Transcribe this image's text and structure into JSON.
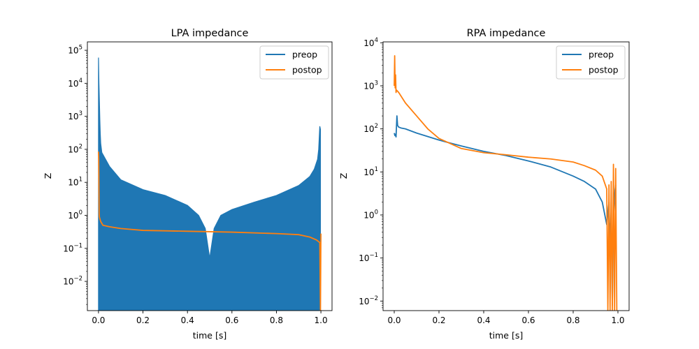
{
  "chart_data": [
    {
      "type": "line",
      "title": "LPA impedance",
      "xlabel": "time [s]",
      "ylabel": "Z",
      "yscale": "log",
      "xlim": [
        -0.05,
        1.05
      ],
      "ylim": [
        0.0013,
        180000
      ],
      "xticks": [
        0.0,
        0.2,
        0.4,
        0.6,
        0.8,
        1.0
      ],
      "xtick_labels": [
        "0.0",
        "0.2",
        "0.4",
        "0.6",
        "0.8",
        "1.0"
      ],
      "ytick_exponents": [
        -2,
        -1,
        0,
        1,
        2,
        3,
        4,
        5
      ],
      "ytick_labels": [
        {
          "base": "10",
          "exp": "−2"
        },
        {
          "base": "10",
          "exp": "−1"
        },
        {
          "base": "10",
          "exp": "0"
        },
        {
          "base": "10",
          "exp": "1"
        },
        {
          "base": "10",
          "exp": "2"
        },
        {
          "base": "10",
          "exp": "3"
        },
        {
          "base": "10",
          "exp": "4"
        },
        {
          "base": "10",
          "exp": "5"
        }
      ],
      "grid": false,
      "legend": "upper right",
      "series": [
        {
          "name": "preop",
          "color": "#1f77b4",
          "style": "oscillating-fill",
          "x": [
            0.0,
            0.002,
            0.004,
            0.006,
            0.008,
            0.01,
            0.015,
            0.05,
            0.1,
            0.2,
            0.3,
            0.4,
            0.45,
            0.48,
            0.5,
            0.52,
            0.55,
            0.6,
            0.7,
            0.8,
            0.9,
            0.95,
            0.97,
            0.985,
            0.99,
            0.995,
            0.998
          ],
          "y": [
            60000,
            10000,
            3000,
            800,
            300,
            150,
            80,
            30,
            12,
            6,
            4,
            2,
            1,
            0.4,
            0.05,
            0.4,
            1,
            1.5,
            2.5,
            4,
            8,
            15,
            25,
            50,
            100,
            500,
            400
          ],
          "y_floor": 0.0013
        },
        {
          "name": "postop",
          "color": "#ff7f0e",
          "x": [
            0.0,
            0.001,
            0.002,
            0.003,
            0.004,
            0.006,
            0.01,
            0.02,
            0.05,
            0.1,
            0.2,
            0.4,
            0.6,
            0.8,
            0.9,
            0.95,
            0.98,
            0.995,
            0.998,
            1.0
          ],
          "y": [
            85,
            50,
            6,
            1.2,
            0.9,
            0.8,
            0.65,
            0.5,
            0.45,
            0.4,
            0.35,
            0.33,
            0.31,
            0.28,
            0.26,
            0.22,
            0.18,
            0.15,
            0.0013,
            0.28
          ]
        }
      ]
    },
    {
      "type": "line",
      "title": "RPA impedance",
      "xlabel": "time [s]",
      "ylabel": "Z",
      "yscale": "log",
      "xlim": [
        -0.05,
        1.05
      ],
      "ylim": [
        0.006,
        10500
      ],
      "xticks": [
        0.0,
        0.2,
        0.4,
        0.6,
        0.8,
        1.0
      ],
      "xtick_labels": [
        "0.0",
        "0.2",
        "0.4",
        "0.6",
        "0.8",
        "1.0"
      ],
      "ytick_exponents": [
        -2,
        -1,
        0,
        1,
        2,
        3,
        4
      ],
      "ytick_labels": [
        {
          "base": "10",
          "exp": "−2"
        },
        {
          "base": "10",
          "exp": "−1"
        },
        {
          "base": "10",
          "exp": "0"
        },
        {
          "base": "10",
          "exp": "1"
        },
        {
          "base": "10",
          "exp": "2"
        },
        {
          "base": "10",
          "exp": "3"
        },
        {
          "base": "10",
          "exp": "4"
        }
      ],
      "grid": false,
      "legend": "upper right",
      "series": [
        {
          "name": "preop",
          "color": "#1f77b4",
          "x": [
            0.0,
            0.003,
            0.005,
            0.008,
            0.012,
            0.015,
            0.02,
            0.03,
            0.05,
            0.1,
            0.2,
            0.3,
            0.4,
            0.5,
            0.6,
            0.7,
            0.8,
            0.85,
            0.9,
            0.93,
            0.95,
            0.96,
            0.965,
            0.97,
            0.975,
            0.98,
            0.985,
            0.99
          ],
          "y": [
            80,
            70,
            75,
            65,
            200,
            120,
            110,
            105,
            100,
            80,
            55,
            40,
            30,
            24,
            18,
            13,
            8,
            6,
            4,
            2,
            0.6,
            2,
            0.2,
            1.2,
            0.008,
            0.8,
            3,
            5
          ]
        },
        {
          "name": "postop",
          "color": "#ff7f0e",
          "x": [
            0.0,
            0.002,
            0.004,
            0.006,
            0.008,
            0.01,
            0.02,
            0.05,
            0.1,
            0.15,
            0.2,
            0.3,
            0.4,
            0.5,
            0.6,
            0.7,
            0.8,
            0.85,
            0.9,
            0.93,
            0.95,
            0.955,
            0.96,
            0.965,
            0.97,
            0.975,
            0.98,
            0.985,
            0.99,
            0.995
          ],
          "y": [
            1000,
            5000,
            900,
            1800,
            700,
            800,
            700,
            400,
            200,
            100,
            60,
            35,
            28,
            25,
            22,
            20,
            17,
            14,
            11,
            8,
            4,
            0.006,
            5,
            0.006,
            6,
            0.006,
            15,
            0.006,
            12,
            0.006
          ]
        }
      ]
    }
  ]
}
